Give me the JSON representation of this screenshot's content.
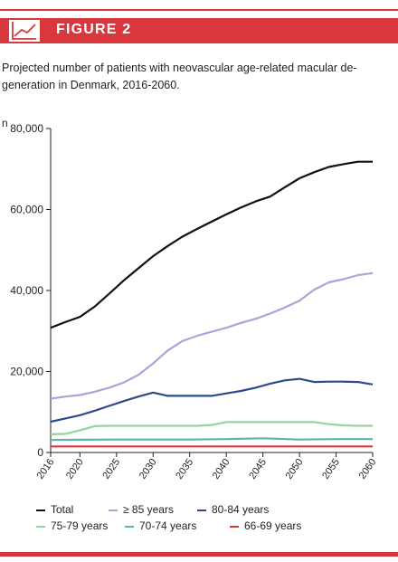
{
  "figure_label": "FIGURE 2",
  "colors": {
    "accent": "#d9373e"
  },
  "icon": "line-chart-icon",
  "chart_data": {
    "type": "line",
    "title": "Projected number of patients with neovascular age-related macular degeneration in Denmark, 2016-2060.",
    "title_lines": [
      "Projected number of patients with neovascular age-related macular de-",
      "generation in Denmark, 2016-2060."
    ],
    "ylabel": "n",
    "xlabel": "",
    "xlim": [
      2016,
      2060
    ],
    "ylim": [
      0,
      80000
    ],
    "x_ticks": [
      2016,
      2020,
      2025,
      2030,
      2035,
      2040,
      2045,
      2050,
      2055,
      2060
    ],
    "y_ticks": [
      0,
      20000,
      40000,
      60000,
      80000
    ],
    "y_tick_labels": [
      "0",
      "20,000",
      "40,000",
      "60,000",
      "80,000"
    ],
    "grid": false,
    "legend_position": "bottom",
    "series": [
      {
        "name": "Total",
        "color": "#111111",
        "points": [
          [
            2016,
            30800
          ],
          [
            2018,
            32200
          ],
          [
            2020,
            33500
          ],
          [
            2022,
            36000
          ],
          [
            2024,
            39200
          ],
          [
            2026,
            42500
          ],
          [
            2028,
            45500
          ],
          [
            2030,
            48500
          ],
          [
            2032,
            51000
          ],
          [
            2034,
            53300
          ],
          [
            2036,
            55200
          ],
          [
            2038,
            57000
          ],
          [
            2040,
            58800
          ],
          [
            2042,
            60500
          ],
          [
            2044,
            62000
          ],
          [
            2046,
            63200
          ],
          [
            2048,
            65500
          ],
          [
            2050,
            67700
          ],
          [
            2052,
            69200
          ],
          [
            2054,
            70500
          ],
          [
            2056,
            71200
          ],
          [
            2058,
            71800
          ],
          [
            2060,
            71800
          ]
        ]
      },
      {
        "name": "≥ 85 years",
        "color": "#a8a6d6",
        "points": [
          [
            2016,
            13300
          ],
          [
            2018,
            13800
          ],
          [
            2020,
            14200
          ],
          [
            2022,
            15000
          ],
          [
            2024,
            16000
          ],
          [
            2026,
            17300
          ],
          [
            2028,
            19200
          ],
          [
            2030,
            22000
          ],
          [
            2032,
            25200
          ],
          [
            2034,
            27500
          ],
          [
            2036,
            28800
          ],
          [
            2038,
            29800
          ],
          [
            2040,
            30800
          ],
          [
            2042,
            32000
          ],
          [
            2044,
            33000
          ],
          [
            2046,
            34300
          ],
          [
            2048,
            35800
          ],
          [
            2050,
            37500
          ],
          [
            2052,
            40200
          ],
          [
            2054,
            42000
          ],
          [
            2056,
            42800
          ],
          [
            2058,
            43800
          ],
          [
            2060,
            44300
          ]
        ]
      },
      {
        "name": "80-84 years",
        "color": "#2a4c8c",
        "points": [
          [
            2016,
            7600
          ],
          [
            2018,
            8400
          ],
          [
            2020,
            9200
          ],
          [
            2022,
            10300
          ],
          [
            2024,
            11500
          ],
          [
            2026,
            12700
          ],
          [
            2028,
            13800
          ],
          [
            2030,
            14800
          ],
          [
            2032,
            14000
          ],
          [
            2034,
            14000
          ],
          [
            2036,
            14000
          ],
          [
            2038,
            14000
          ],
          [
            2040,
            14600
          ],
          [
            2042,
            15200
          ],
          [
            2044,
            16000
          ],
          [
            2046,
            17000
          ],
          [
            2048,
            17800
          ],
          [
            2050,
            18200
          ],
          [
            2052,
            17400
          ],
          [
            2054,
            17500
          ],
          [
            2056,
            17500
          ],
          [
            2058,
            17400
          ],
          [
            2060,
            16800
          ]
        ]
      },
      {
        "name": "75-79 years",
        "color": "#93d598",
        "points": [
          [
            2016,
            4500
          ],
          [
            2018,
            4600
          ],
          [
            2020,
            5500
          ],
          [
            2022,
            6500
          ],
          [
            2024,
            6600
          ],
          [
            2026,
            6600
          ],
          [
            2028,
            6600
          ],
          [
            2030,
            6600
          ],
          [
            2032,
            6600
          ],
          [
            2034,
            6600
          ],
          [
            2036,
            6600
          ],
          [
            2038,
            6800
          ],
          [
            2040,
            7500
          ],
          [
            2042,
            7500
          ],
          [
            2044,
            7500
          ],
          [
            2046,
            7500
          ],
          [
            2048,
            7500
          ],
          [
            2050,
            7500
          ],
          [
            2052,
            7500
          ],
          [
            2054,
            7000
          ],
          [
            2056,
            6700
          ],
          [
            2058,
            6600
          ],
          [
            2060,
            6600
          ]
        ]
      },
      {
        "name": "70-74 years",
        "color": "#5fb3a8",
        "points": [
          [
            2016,
            3100
          ],
          [
            2020,
            3150
          ],
          [
            2025,
            3200
          ],
          [
            2030,
            3200
          ],
          [
            2035,
            3200
          ],
          [
            2040,
            3300
          ],
          [
            2045,
            3500
          ],
          [
            2050,
            3200
          ],
          [
            2055,
            3300
          ],
          [
            2060,
            3300
          ]
        ]
      },
      {
        "name": "66-69 years",
        "color": "#d9373e",
        "points": [
          [
            2016,
            1500
          ],
          [
            2020,
            1500
          ],
          [
            2025,
            1500
          ],
          [
            2030,
            1500
          ],
          [
            2035,
            1500
          ],
          [
            2040,
            1500
          ],
          [
            2045,
            1500
          ],
          [
            2050,
            1500
          ],
          [
            2055,
            1500
          ],
          [
            2060,
            1500
          ]
        ]
      }
    ]
  }
}
